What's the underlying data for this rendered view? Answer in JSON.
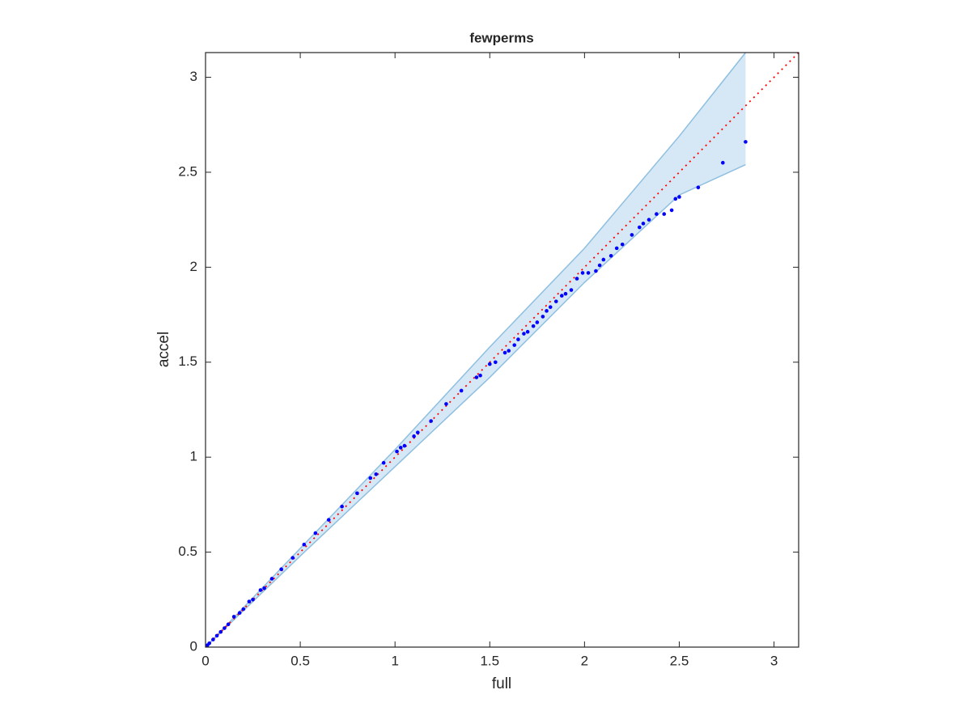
{
  "chart_data": {
    "type": "scatter",
    "title": "fewperms",
    "x_label": "full",
    "y_label": "accel",
    "xlim": [
      0,
      3.13
    ],
    "ylim": [
      0,
      3.13
    ],
    "xticks": [
      0,
      0.5,
      1,
      1.5,
      2,
      2.5,
      3
    ],
    "yticks": [
      0,
      0.5,
      1,
      1.5,
      2,
      2.5,
      3
    ],
    "grid": false,
    "reference_line": {
      "color": "#ff0000"
    },
    "band": {
      "color": "#d6e8f5",
      "edge_color": "#8fbfe0",
      "x": [
        0,
        0.5,
        1,
        1.5,
        2,
        2.5,
        2.85
      ],
      "upper": [
        0,
        0.52,
        1.04,
        1.58,
        2.1,
        2.69,
        3.13
      ],
      "lower": [
        0,
        0.48,
        0.95,
        1.42,
        1.92,
        2.38,
        2.54
      ]
    },
    "color": "#0000ff",
    "x": [
      0.01,
      0.02,
      0.04,
      0.06,
      0.08,
      0.1,
      0.12,
      0.15,
      0.18,
      0.2,
      0.23,
      0.25,
      0.29,
      0.31,
      0.35,
      0.4,
      0.46,
      0.52,
      0.58,
      0.65,
      0.72,
      0.8,
      0.87,
      0.9,
      0.94,
      1.01,
      1.03,
      1.05,
      1.1,
      1.12,
      1.19,
      1.27,
      1.35,
      1.43,
      1.45,
      1.5,
      1.53,
      1.58,
      1.6,
      1.63,
      1.65,
      1.68,
      1.7,
      1.73,
      1.75,
      1.78,
      1.8,
      1.82,
      1.85,
      1.88,
      1.9,
      1.93,
      1.96,
      1.99,
      2.02,
      2.06,
      2.08,
      2.1,
      2.14,
      2.17,
      2.2,
      2.25,
      2.29,
      2.31,
      2.34,
      2.38,
      2.42,
      2.46,
      2.48,
      2.5,
      2.6,
      2.73,
      2.85
    ],
    "values": [
      0.01,
      0.02,
      0.04,
      0.06,
      0.08,
      0.1,
      0.12,
      0.16,
      0.18,
      0.2,
      0.24,
      0.25,
      0.3,
      0.31,
      0.36,
      0.41,
      0.47,
      0.54,
      0.6,
      0.67,
      0.74,
      0.81,
      0.89,
      0.91,
      0.97,
      1.03,
      1.05,
      1.06,
      1.11,
      1.13,
      1.19,
      1.28,
      1.35,
      1.42,
      1.43,
      1.49,
      1.5,
      1.55,
      1.56,
      1.59,
      1.62,
      1.65,
      1.66,
      1.69,
      1.71,
      1.74,
      1.77,
      1.79,
      1.82,
      1.85,
      1.86,
      1.88,
      1.94,
      1.97,
      1.97,
      1.98,
      2.01,
      2.04,
      2.06,
      2.1,
      2.12,
      2.17,
      2.21,
      2.23,
      2.25,
      2.28,
      2.28,
      2.3,
      2.36,
      2.37,
      2.42,
      2.55,
      2.66
    ]
  }
}
